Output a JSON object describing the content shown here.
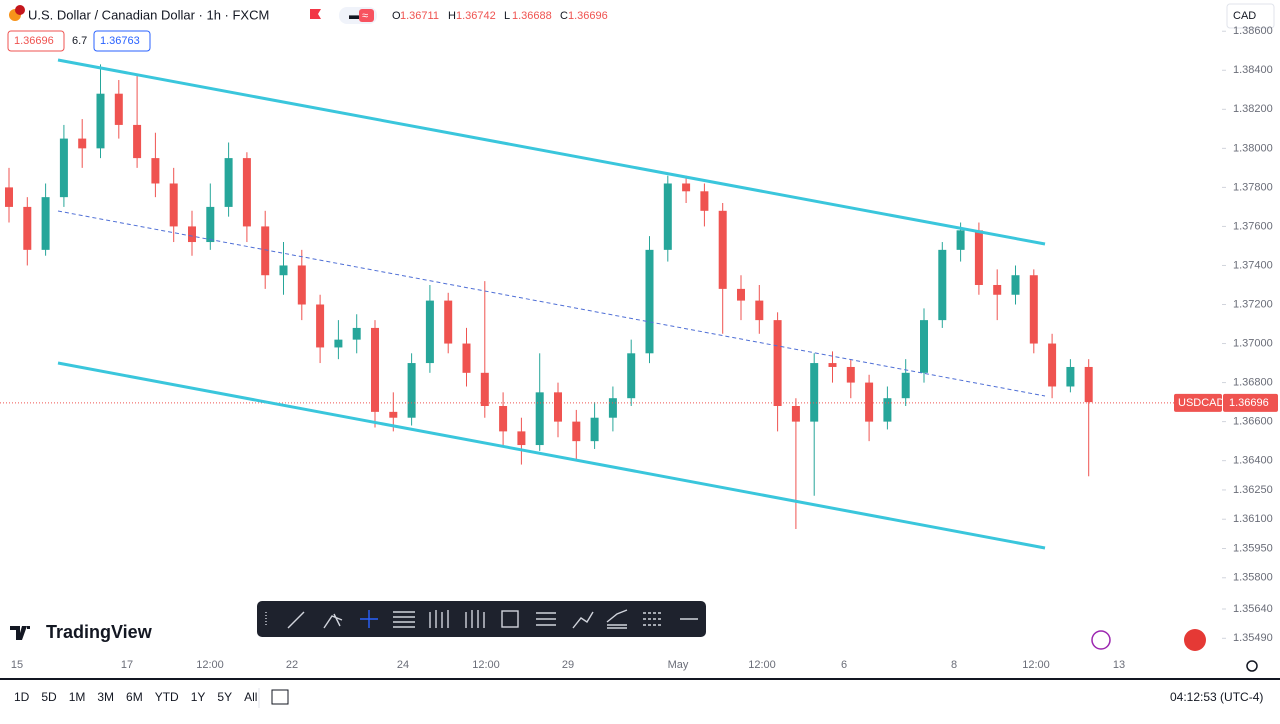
{
  "header": {
    "title": "U.S. Dollar / Canadian Dollar · 1h · FXCM",
    "ohlc": [
      {
        "key": "O",
        "value": 1.36711
      },
      {
        "key": "H",
        "value": 1.36742
      },
      {
        "key": "L",
        "value": 1.36688
      },
      {
        "key": "C",
        "value": 1.36696
      }
    ],
    "bid": 1.36696,
    "spread": 6.7,
    "ask": 1.36763,
    "currency": "CAD"
  },
  "chart_data": {
    "type": "candlestick",
    "up_color": "#26a69a",
    "down_color": "#ef5350",
    "ylim": [
      1.3543,
      1.3876
    ],
    "yticks": [
      {
        "value": 1.386,
        "label": "1.38600"
      },
      {
        "value": 1.384,
        "label": "1.38400"
      },
      {
        "value": 1.382,
        "label": "1.38200"
      },
      {
        "value": 1.38,
        "label": "1.38000"
      },
      {
        "value": 1.378,
        "label": "1.37800"
      },
      {
        "value": 1.376,
        "label": "1.37600"
      },
      {
        "value": 1.374,
        "label": "1.37400"
      },
      {
        "value": 1.372,
        "label": "1.37200"
      },
      {
        "value": 1.37,
        "label": "1.37000"
      },
      {
        "value": 1.368,
        "label": "1.36800"
      },
      {
        "value": 1.366,
        "label": "1.36600"
      },
      {
        "value": 1.364,
        "label": "1.36400"
      },
      {
        "value": 1.3625,
        "label": "1.36250"
      },
      {
        "value": 1.361,
        "label": "1.36100"
      },
      {
        "value": 1.3595,
        "label": "1.35950"
      },
      {
        "value": 1.358,
        "label": "1.35800"
      },
      {
        "value": 1.3564,
        "label": "1.35640"
      },
      {
        "value": 1.3549,
        "label": "1.35490"
      }
    ],
    "time_labels": [
      "15",
      "17",
      "12:00",
      "22",
      "24",
      "12:00",
      "29",
      "May",
      "12:00",
      "6",
      "8",
      "12:00",
      "13"
    ],
    "open": [
      1.378,
      1.377,
      1.3748,
      1.3775,
      1.3805,
      1.38,
      1.3828,
      1.3812,
      1.3795,
      1.3782,
      1.376,
      1.3752,
      1.377,
      1.3795,
      1.376,
      1.3735,
      1.374,
      1.372,
      1.3698,
      1.3702,
      1.3708,
      1.3665,
      1.3662,
      1.369,
      1.3722,
      1.37,
      1.3685,
      1.3668,
      1.3655,
      1.3648,
      1.3675,
      1.366,
      1.365,
      1.3662,
      1.3672,
      1.3695,
      1.3748,
      1.3782,
      1.3778,
      1.3768,
      1.3728,
      1.3722,
      1.3712,
      1.3668,
      1.366,
      1.369,
      1.3688,
      1.368,
      1.366,
      1.3672,
      1.3685,
      1.3712,
      1.3748,
      1.3758,
      1.373,
      1.3725,
      1.3735,
      1.37,
      1.3678,
      1.3688
    ],
    "high": [
      1.379,
      1.3775,
      1.3782,
      1.3812,
      1.3815,
      1.3843,
      1.3835,
      1.3838,
      1.3808,
      1.379,
      1.3768,
      1.3782,
      1.3803,
      1.3798,
      1.3768,
      1.3752,
      1.3748,
      1.3725,
      1.3712,
      1.3715,
      1.3712,
      1.3675,
      1.3695,
      1.373,
      1.3726,
      1.3708,
      1.3732,
      1.3675,
      1.3662,
      1.3695,
      1.368,
      1.3666,
      1.367,
      1.3678,
      1.3702,
      1.3755,
      1.3786,
      1.3786,
      1.3782,
      1.3772,
      1.3735,
      1.373,
      1.3716,
      1.3672,
      1.3695,
      1.3696,
      1.3692,
      1.3684,
      1.3678,
      1.3692,
      1.3718,
      1.3752,
      1.3762,
      1.3762,
      1.3738,
      1.374,
      1.3738,
      1.3705,
      1.3692,
      1.3692
    ],
    "low": [
      1.3762,
      1.374,
      1.3745,
      1.377,
      1.379,
      1.3795,
      1.3805,
      1.379,
      1.3775,
      1.3752,
      1.3745,
      1.3748,
      1.3765,
      1.3752,
      1.3728,
      1.3725,
      1.3712,
      1.369,
      1.3692,
      1.3695,
      1.3657,
      1.3655,
      1.3658,
      1.3685,
      1.3695,
      1.3678,
      1.3662,
      1.3648,
      1.3638,
      1.3645,
      1.3652,
      1.364,
      1.3646,
      1.3655,
      1.3668,
      1.369,
      1.3742,
      1.3772,
      1.376,
      1.3705,
      1.3712,
      1.3705,
      1.3655,
      1.3605,
      1.3622,
      1.368,
      1.3672,
      1.365,
      1.3656,
      1.3668,
      1.368,
      1.3708,
      1.3742,
      1.3725,
      1.3712,
      1.372,
      1.3695,
      1.3672,
      1.3675,
      1.3632
    ],
    "close": [
      1.377,
      1.3748,
      1.3775,
      1.3805,
      1.38,
      1.3828,
      1.3812,
      1.3795,
      1.3782,
      1.376,
      1.3752,
      1.377,
      1.3795,
      1.376,
      1.3735,
      1.374,
      1.372,
      1.3698,
      1.3702,
      1.3708,
      1.3665,
      1.3662,
      1.369,
      1.3722,
      1.37,
      1.3685,
      1.3668,
      1.3655,
      1.3648,
      1.3675,
      1.366,
      1.365,
      1.3662,
      1.3672,
      1.3695,
      1.3748,
      1.3782,
      1.3778,
      1.3768,
      1.3728,
      1.3722,
      1.3712,
      1.3668,
      1.366,
      1.369,
      1.3688,
      1.368,
      1.366,
      1.3672,
      1.3685,
      1.3712,
      1.3748,
      1.3758,
      1.373,
      1.3725,
      1.3735,
      1.37,
      1.3678,
      1.3688,
      1.367
    ],
    "symbol_label": "USDCAD",
    "last_price": 1.36696
  },
  "branding": "TradingView",
  "footer": {
    "ranges": [
      "1D",
      "5D",
      "1M",
      "3M",
      "6M",
      "YTD",
      "1Y",
      "5Y",
      "All"
    ],
    "clock": "04:12:53 (UTC-4)"
  }
}
